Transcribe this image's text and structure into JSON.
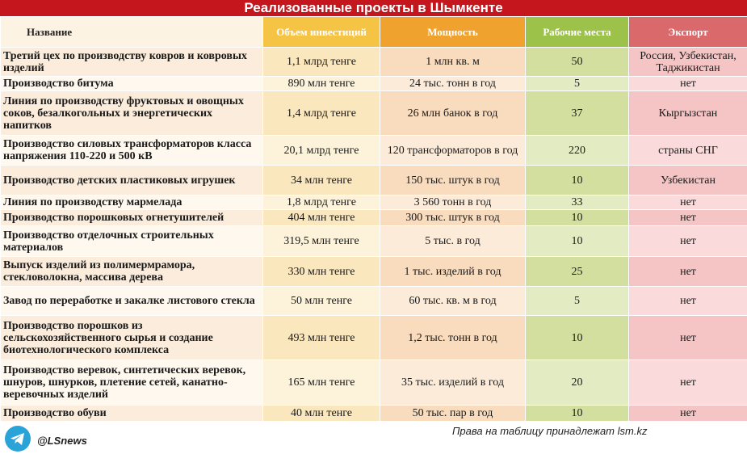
{
  "header": {
    "title": "Реализованные проекты в Шымкенте"
  },
  "table": {
    "columns": [
      "Название",
      "Объем инвестиций",
      "Мощность",
      "Рабочие места",
      "Экспорт"
    ],
    "rows": [
      [
        "Третий цех по производству ковров и ковровых изделий",
        "1,1 млрд тенге",
        "1 млн кв. м",
        "50",
        "Россия, Узбекистан, Таджикистан"
      ],
      [
        "Производство битума",
        "890 млн тенге",
        "24 тыс. тонн в год",
        "5",
        "нет"
      ],
      [
        "Линия по производству фруктовых и овощных соков, безалкогольных и энергетических напитков",
        "1,4 млрд тенге",
        "26 млн банок в год",
        "37",
        "Кыргызстан"
      ],
      [
        "Производство силовых трансформаторов класса напряжения 110-220 и 500 кВ",
        "20,1 млрд тенге",
        "120 трансформаторов в год",
        "220",
        "страны СНГ"
      ],
      [
        "Производство детских пластиковых игрушек",
        "34 млн тенге",
        "150 тыс. штук в год",
        "10",
        "Узбекистан"
      ],
      [
        "Линия по производству мармелада",
        "1,8 млрд тенге",
        "3 560 тонн в год",
        "33",
        "нет"
      ],
      [
        "Производство порошковых огнетушителей",
        "404 млн тенге",
        "300 тыс. штук в год",
        "10",
        "нет"
      ],
      [
        "Производство отделочных строительных материалов",
        "319,5 млн тенге",
        "5 тыс. в год",
        "10",
        "нет"
      ],
      [
        "Выпуск изделий из полимермрамора, стекловолокна, массива дерева",
        "330 млн тенге",
        "1 тыс. изделий в год",
        "25",
        "нет"
      ],
      [
        "Завод по переработке и закалке листового стекла",
        "50 млн тенге",
        "60 тыс. кв. м в год",
        "5",
        "нет"
      ],
      [
        "Производство порошков из сельскохозяйственного сырья и создание биотехнологического комплекса",
        "493 млн тенге",
        "1,2 тыс. тонн в год",
        "10",
        "нет"
      ],
      [
        "Производство веревок, синтетических веревок, шнуров, шнурков, плетение сетей, канатно-веревочных изделий",
        "165 млн тенге",
        "35 тыс. изделий в год",
        "20",
        "нет"
      ],
      [
        "Производство обуви",
        "40 млн тенге",
        "50 тыс. пар в год",
        "10",
        "нет"
      ]
    ]
  },
  "footer": {
    "handle": "@LSnews",
    "credit": "Права на таблицу принадлежат lsm.kz"
  }
}
